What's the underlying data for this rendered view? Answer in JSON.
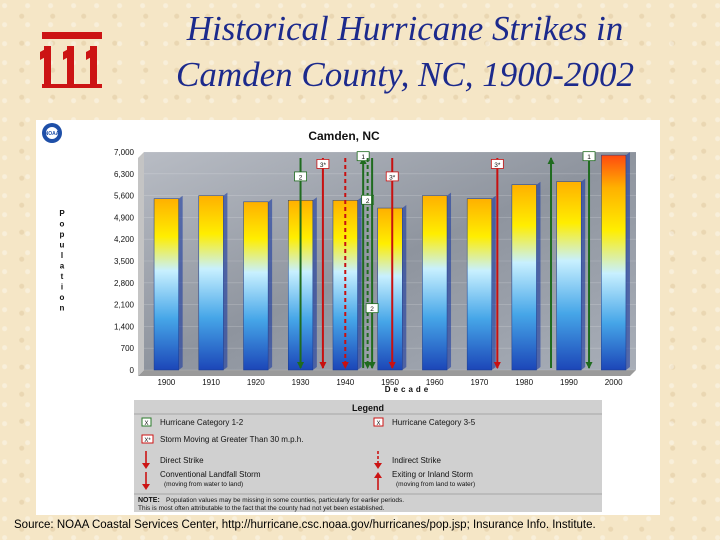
{
  "slide": {
    "title_line1": "Historical Hurricane Strikes in",
    "title_line2": "Camden County, NC, 1900-2002",
    "source": "Source: NOAA Coastal Services Center, http://hurricane.csc.noaa.gov/hurricanes/pop.jsp; Insurance Info. Institute.",
    "logo_letters": "iii"
  },
  "badge": {
    "text": "NOAA"
  },
  "chart_data": {
    "type": "bar",
    "title": "Camden, NC",
    "xlabel": "Decade",
    "ylabel": "Population",
    "ylim": [
      0,
      7000
    ],
    "yticks": [
      "0",
      "700",
      "1,400",
      "2,100",
      "2,800",
      "3,500",
      "4,200",
      "4,900",
      "5,600",
      "6,300",
      "7,000"
    ],
    "categories": [
      "1900",
      "1910",
      "1920",
      "1930",
      "1940",
      "1950",
      "1960",
      "1970",
      "1980",
      "1990",
      "2000"
    ],
    "values": [
      5500,
      5600,
      5400,
      5450,
      5450,
      5200,
      5600,
      5500,
      5950,
      6050,
      6900
    ],
    "strikes": [
      {
        "x": 3.5,
        "kind": "direct",
        "cat": "1-2",
        "label": "2",
        "label_y": 6200
      },
      {
        "x": 4.0,
        "kind": "direct",
        "cat": "3-5",
        "label": "3*",
        "label_y": 6600
      },
      {
        "x": 4.5,
        "kind": "indirect",
        "cat": "3-5",
        "label": "",
        "label_y": 0
      },
      {
        "x": 4.9,
        "kind": "exit",
        "cat": "1-2",
        "label": "1",
        "label_y": 6850
      },
      {
        "x": 5.0,
        "kind": "indirect",
        "cat": "1-2",
        "label": "2",
        "label_y": 5450
      },
      {
        "x": 5.1,
        "kind": "direct",
        "cat": "1-2",
        "label": "2",
        "label_y": 1970
      },
      {
        "x": 5.55,
        "kind": "direct",
        "cat": "3-5",
        "label": "3*",
        "label_y": 6200
      },
      {
        "x": 7.9,
        "kind": "direct",
        "cat": "3-5",
        "label": "3*",
        "label_y": 6600
      },
      {
        "x": 9.1,
        "kind": "exit",
        "cat": "1-2",
        "label": "",
        "label_y": 0
      },
      {
        "x": 9.95,
        "kind": "direct",
        "cat": "1-2",
        "label": "1",
        "label_y": 6850
      }
    ],
    "legend": {
      "title": "Legend",
      "items": [
        {
          "symbol": "X",
          "text": "Hurricane Category 1-2"
        },
        {
          "symbol": "X",
          "text": "Hurricane Category 3-5"
        },
        {
          "symbol": "X*",
          "text": "Storm Moving at Greater Than 30 m.p.h."
        },
        {
          "symbol": "arrow-down",
          "text": "Direct Strike"
        },
        {
          "symbol": "arrow-down-dash",
          "text": "Indirect Strike"
        },
        {
          "symbol": "arrow-land",
          "text": "Conventional Landfall Storm",
          "sub": "(moving from water to land)"
        },
        {
          "symbol": "arrow-up",
          "text": "Exiting or Inland Storm",
          "sub": "(moving from land to water)"
        }
      ],
      "note_label": "NOTE:",
      "note_line1": "Population values may be missing in some counties, particularly for earlier periods.",
      "note_line2": "This is most often attributable to the fact that the county had not yet been established."
    }
  }
}
